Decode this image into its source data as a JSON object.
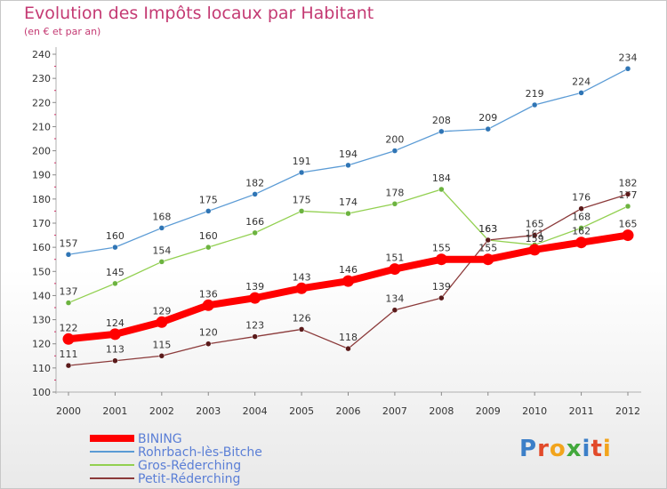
{
  "title": "Evolution des Impôts locaux par Habitant",
  "subtitle": "(en € et par an)",
  "brand": "Proxiti",
  "brand_colors": [
    "#3c7fc8",
    "#e24a2a",
    "#f2a41c",
    "#42a83c",
    "#3c7fc8",
    "#e24a2a",
    "#f2a41c"
  ],
  "chart_data": {
    "type": "line",
    "x": [
      "2000",
      "2001",
      "2002",
      "2003",
      "2004",
      "2005",
      "2006",
      "2007",
      "2008",
      "2009",
      "2010",
      "2011",
      "2012"
    ],
    "ylim": [
      100,
      240
    ],
    "yticks": [
      100,
      110,
      120,
      130,
      140,
      150,
      160,
      170,
      180,
      190,
      200,
      210,
      220,
      230,
      240
    ],
    "grid": false,
    "legend_position": "bottom-left",
    "series": [
      {
        "name": "Rohrbach-lès-Bitche",
        "color": "#5b9bd5",
        "marker": "#2f75b5",
        "values": [
          157,
          160,
          168,
          175,
          182,
          191,
          194,
          200,
          208,
          209,
          219,
          224,
          234
        ],
        "labels": [
          "157",
          "160",
          "168",
          "175",
          "182",
          "191",
          "194",
          "200",
          "208",
          "209",
          "219",
          "224",
          "234"
        ]
      },
      {
        "name": "Gros-Réderching",
        "color": "#92d050",
        "marker": "#6cb33f",
        "values": [
          137,
          145,
          154,
          160,
          166,
          175,
          174,
          178,
          184,
          163,
          161,
          168,
          177
        ],
        "labels": [
          "137",
          "145",
          "154",
          "160",
          "166",
          "175",
          "174",
          "178",
          "184",
          "163",
          "161",
          "168",
          "177"
        ]
      },
      {
        "name": "Petit-Réderching",
        "color": "#8b3a3a",
        "marker": "#5a1a1a",
        "values": [
          111,
          113,
          115,
          120,
          123,
          126,
          118,
          134,
          139,
          163,
          165,
          176,
          182
        ],
        "labels": [
          "111",
          "113",
          "115",
          "120",
          "123",
          "126",
          "118",
          "134",
          "139",
          "163",
          "165",
          "176",
          "182"
        ]
      },
      {
        "name": "BINING",
        "color": "#ff0000",
        "marker": "#ff0000",
        "bold": true,
        "values": [
          122,
          124,
          129,
          136,
          139,
          143,
          146,
          151,
          155,
          155,
          159,
          162,
          165
        ],
        "labels": [
          "122",
          "124",
          "129",
          "136",
          "139",
          "143",
          "146",
          "151",
          "155",
          "155",
          "159",
          "162",
          "165"
        ]
      }
    ],
    "legend_order": [
      "BINING",
      "Rohrbach-lès-Bitche",
      "Gros-Réderching",
      "Petit-Réderching"
    ]
  }
}
